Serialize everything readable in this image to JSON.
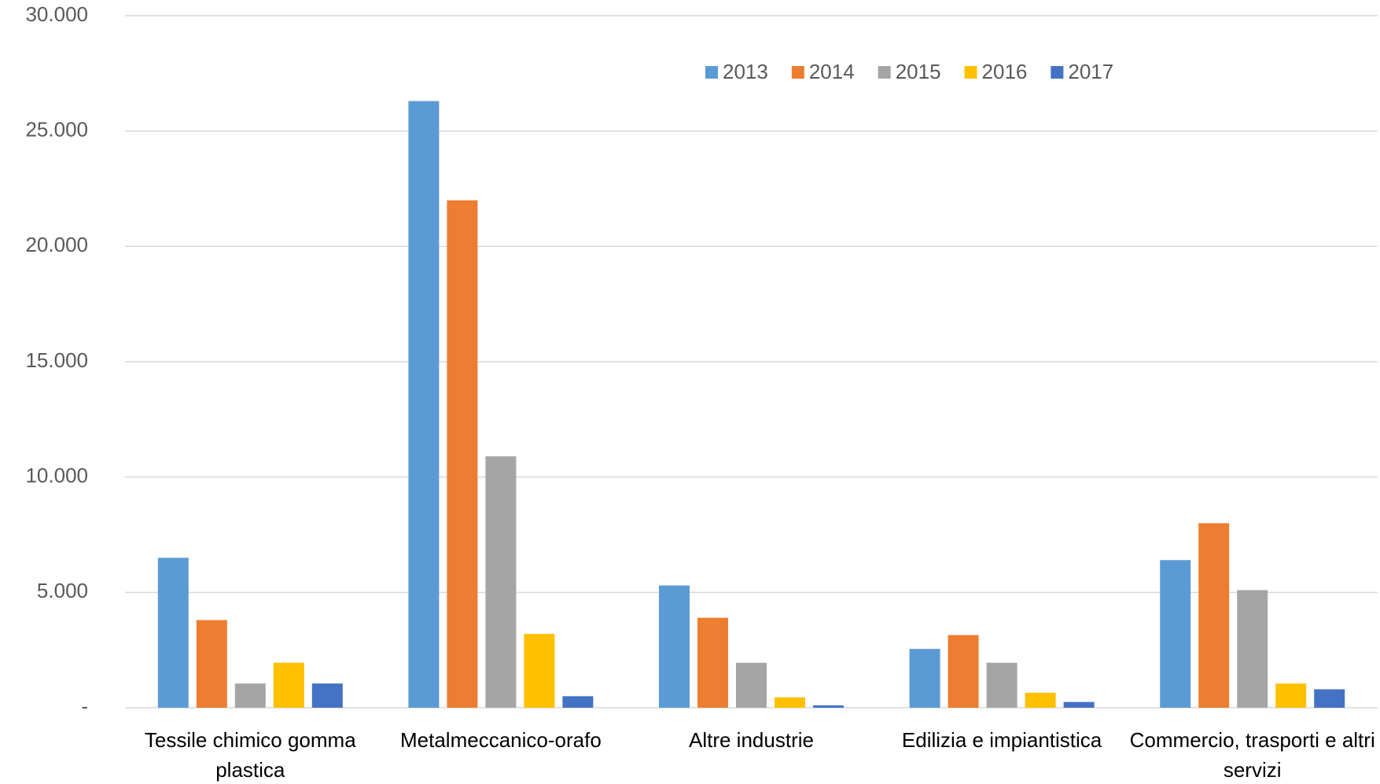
{
  "chart_data": {
    "type": "bar",
    "categories": [
      "Tessile chimico gomma plastica",
      "Metalmeccanico-orafo",
      "Altre industrie",
      "Edilizia e impiantistica",
      "Commercio, trasporti e altri servizi"
    ],
    "series": [
      {
        "name": "2013",
        "color": "#5b9bd5",
        "values": [
          6500,
          26300,
          5300,
          2550,
          6400
        ]
      },
      {
        "name": "2014",
        "color": "#ed7d31",
        "values": [
          3800,
          22000,
          3900,
          3150,
          8000
        ]
      },
      {
        "name": "2015",
        "color": "#a5a5a5",
        "values": [
          1050,
          10900,
          1950,
          1950,
          5100
        ]
      },
      {
        "name": "2016",
        "color": "#ffc000",
        "values": [
          1950,
          3200,
          450,
          650,
          1050
        ]
      },
      {
        "name": "2017",
        "color": "#4472c4",
        "values": [
          1050,
          500,
          100,
          250,
          800
        ]
      }
    ],
    "ylim": [
      0,
      30000
    ],
    "yticks": [
      {
        "value": 0,
        "label": "-"
      },
      {
        "value": 5000,
        "label": "5.000"
      },
      {
        "value": 10000,
        "label": "10.000"
      },
      {
        "value": 15000,
        "label": "15.000"
      },
      {
        "value": 20000,
        "label": "20.000"
      },
      {
        "value": 25000,
        "label": "25.000"
      },
      {
        "value": 30000,
        "label": "30.000"
      }
    ],
    "grid": true,
    "legend": "top"
  }
}
